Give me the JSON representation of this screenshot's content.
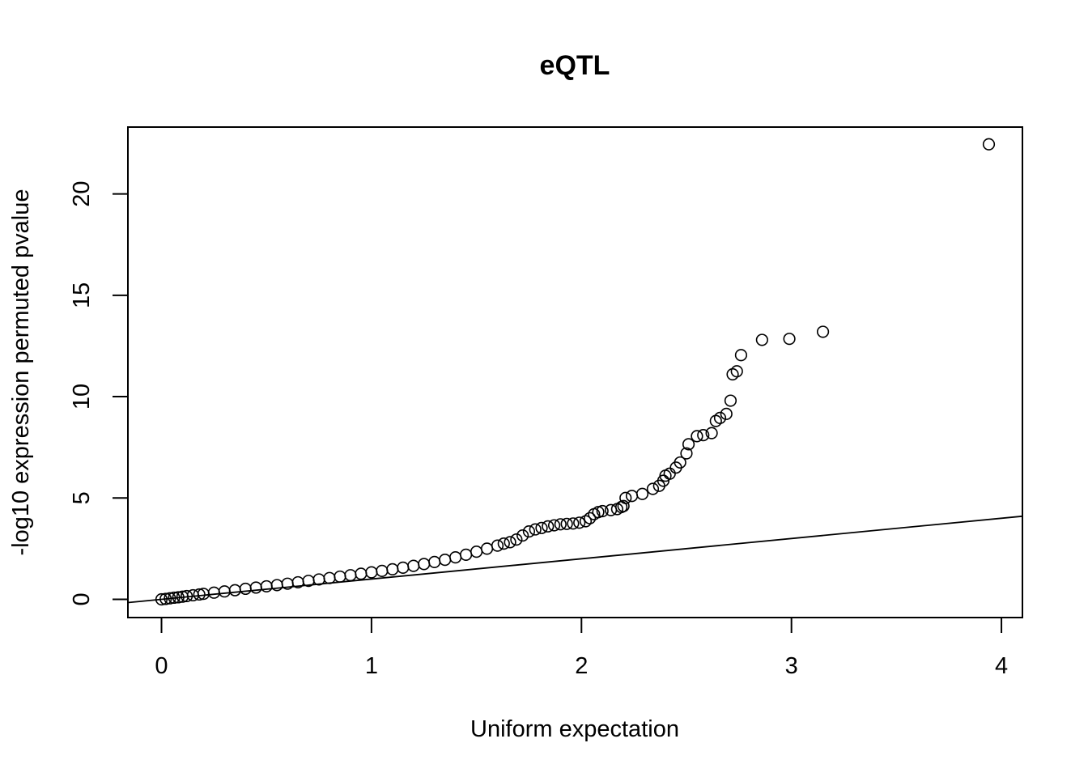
{
  "chart_data": {
    "type": "scatter",
    "title": "eQTL",
    "xlabel": "Uniform expectation",
    "ylabel": "-log10 expression permuted pvalue",
    "xlim": [
      -0.16,
      4.1
    ],
    "ylim": [
      -0.9,
      23.3
    ],
    "xticks": [
      0,
      1,
      2,
      3,
      4
    ],
    "yticks": [
      0,
      5,
      10,
      15,
      20
    ],
    "reference_line": {
      "intercept": 0,
      "slope": 1
    },
    "grid": false,
    "marker": "open-circle",
    "colors": {
      "points": "#000000",
      "line": "#000000",
      "frame": "#000000"
    },
    "series": [
      {
        "x": [
          0.0,
          0.02,
          0.04,
          0.06,
          0.08,
          0.1,
          0.12,
          0.15,
          0.18,
          0.2,
          0.25,
          0.3,
          0.35,
          0.4,
          0.45,
          0.5,
          0.55,
          0.6,
          0.65,
          0.7,
          0.75,
          0.8,
          0.85,
          0.9,
          0.95,
          1.0,
          1.05,
          1.1,
          1.15,
          1.2,
          1.25,
          1.3,
          1.35,
          1.4,
          1.45,
          1.5,
          1.55,
          1.6,
          1.63,
          1.66,
          1.69,
          1.72,
          1.75,
          1.78,
          1.81,
          1.84,
          1.87,
          1.9,
          1.93,
          1.96,
          1.99,
          2.02,
          2.04,
          2.06,
          2.08,
          2.1,
          2.14,
          2.17,
          2.19,
          2.2,
          2.21,
          2.24,
          2.29,
          2.34,
          2.37,
          2.39,
          2.4,
          2.42,
          2.45,
          2.47,
          2.5,
          2.51,
          2.55,
          2.58,
          2.62,
          2.64,
          2.66,
          2.69,
          2.71,
          2.72,
          2.74,
          2.76,
          2.86,
          2.99,
          3.15,
          3.94
        ],
        "y": [
          0.0,
          0.02,
          0.05,
          0.08,
          0.1,
          0.13,
          0.16,
          0.2,
          0.24,
          0.27,
          0.33,
          0.39,
          0.45,
          0.52,
          0.58,
          0.64,
          0.7,
          0.77,
          0.84,
          0.91,
          0.98,
          1.05,
          1.12,
          1.19,
          1.26,
          1.33,
          1.4,
          1.48,
          1.56,
          1.65,
          1.74,
          1.84,
          1.95,
          2.07,
          2.2,
          2.35,
          2.5,
          2.65,
          2.75,
          2.82,
          2.95,
          3.15,
          3.35,
          3.45,
          3.52,
          3.6,
          3.65,
          3.7,
          3.72,
          3.74,
          3.78,
          3.85,
          4.0,
          4.2,
          4.3,
          4.35,
          4.4,
          4.45,
          4.55,
          4.6,
          5.0,
          5.1,
          5.2,
          5.45,
          5.6,
          5.85,
          6.1,
          6.2,
          6.5,
          6.75,
          7.2,
          7.65,
          8.05,
          8.1,
          8.2,
          8.8,
          8.95,
          9.15,
          9.8,
          11.1,
          11.25,
          12.05,
          12.8,
          12.85,
          13.2,
          22.45
        ]
      }
    ]
  }
}
